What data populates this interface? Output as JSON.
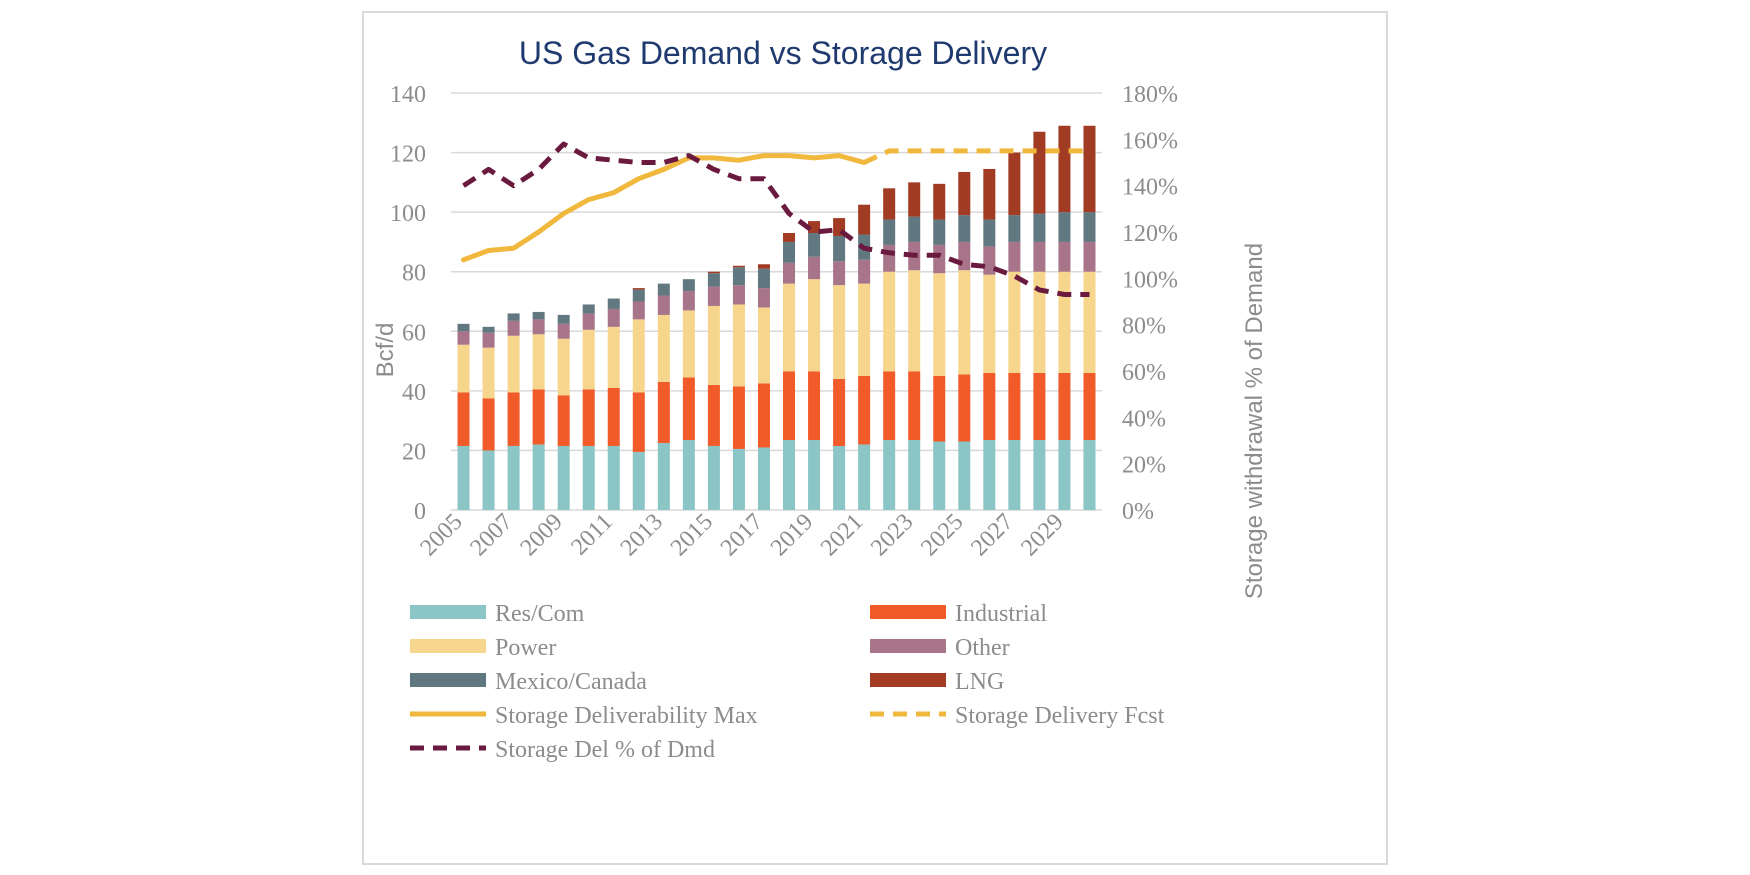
{
  "chart_data": {
    "type": "bar",
    "title": "US Gas Demand vs Storage Delivery",
    "ylabel": "Bcf/d",
    "y2label": "Storage withdrawal % of Demand",
    "ylim": [
      0,
      140
    ],
    "y2lim": [
      0,
      180
    ],
    "yticks": [
      "0",
      "20",
      "40",
      "60",
      "80",
      "100",
      "120",
      "140"
    ],
    "y2ticks": [
      "0%",
      "20%",
      "40%",
      "60%",
      "80%",
      "100%",
      "120%",
      "140%",
      "160%",
      "180%"
    ],
    "categories": [
      "2005",
      "2006",
      "2007",
      "2008",
      "2009",
      "2010",
      "2011",
      "2012",
      "2013",
      "2014",
      "2015",
      "2016",
      "2017",
      "2018",
      "2019",
      "2020",
      "2021",
      "2022",
      "2023",
      "2024",
      "2025",
      "2026",
      "2027",
      "2028",
      "2029",
      "2030"
    ],
    "x_tick_labels": [
      "2005",
      "2007",
      "2009",
      "2011",
      "2013",
      "2015",
      "2017",
      "2019",
      "2021",
      "2023",
      "2025",
      "2027",
      "2029"
    ],
    "grid": true,
    "legend_position": "bottom",
    "series": [
      {
        "name": "Res/Com",
        "kind": "bar",
        "color": "#8cc5c6",
        "values": [
          21.5,
          20,
          21.5,
          22,
          21.5,
          21.5,
          21.5,
          19.5,
          22.5,
          23.5,
          21.5,
          20.5,
          21,
          23.5,
          23.5,
          21.5,
          22,
          23.5,
          23.5,
          23,
          23,
          23.5,
          23.5,
          23.5,
          23.5,
          23.5
        ]
      },
      {
        "name": "Industrial",
        "kind": "bar",
        "color": "#f15a29",
        "values": [
          18,
          17.5,
          18,
          18.5,
          17,
          19,
          19.5,
          20,
          20.5,
          21,
          20.5,
          21,
          21.5,
          23,
          23,
          22.5,
          23,
          23,
          23,
          22,
          22.5,
          22.5,
          22.5,
          22.5,
          22.5,
          22.5
        ]
      },
      {
        "name": "Power",
        "kind": "bar",
        "color": "#f5d68c",
        "values": [
          16,
          17,
          19,
          18.5,
          19,
          20,
          20.5,
          24.5,
          22.5,
          22.5,
          26.5,
          27.5,
          25.5,
          29.5,
          31,
          31.5,
          31,
          33.5,
          34,
          34.5,
          35,
          33,
          34,
          34,
          34,
          34
        ]
      },
      {
        "name": "Other",
        "kind": "bar",
        "color": "#a87489",
        "values": [
          4.5,
          5,
          5,
          5,
          5,
          5.5,
          6,
          6,
          6.5,
          6.5,
          6.5,
          6.5,
          6.5,
          7,
          7.5,
          8,
          8,
          9,
          9.5,
          9.5,
          9.5,
          9.5,
          10,
          10,
          10,
          10
        ]
      },
      {
        "name": "Mexico/Canada",
        "kind": "bar",
        "color": "#627880",
        "values": [
          2.5,
          2,
          2.5,
          2.5,
          3,
          3,
          3.5,
          4,
          4,
          4,
          4.5,
          6,
          6.5,
          7,
          8,
          8.5,
          8.5,
          8.5,
          8.5,
          8.5,
          9,
          9,
          9,
          9.5,
          10,
          10
        ]
      },
      {
        "name": "LNG",
        "kind": "bar",
        "color": "#a23b24",
        "values": [
          0,
          0,
          0,
          0,
          0,
          0,
          0,
          0.5,
          0,
          0,
          0.5,
          0.5,
          1.5,
          3,
          4,
          6,
          10,
          10.5,
          11.5,
          12,
          14.5,
          17,
          21,
          27.5,
          29,
          29
        ]
      },
      {
        "name": "Storage Deliverability Max",
        "kind": "line",
        "axis": "right",
        "color": "#f0b83d",
        "dash": false,
        "values": [
          108,
          112,
          113,
          120,
          128,
          134,
          137,
          143,
          147,
          152,
          152,
          151,
          153,
          153,
          152,
          153,
          150,
          null,
          null,
          null,
          null,
          null,
          null,
          null,
          null,
          null
        ]
      },
      {
        "name": "Storage Delivery Fcst",
        "kind": "line",
        "axis": "right",
        "color": "#f0b83d",
        "dash": true,
        "values": [
          null,
          null,
          null,
          null,
          null,
          null,
          null,
          null,
          null,
          null,
          null,
          null,
          null,
          null,
          null,
          null,
          150,
          155,
          155,
          155,
          155,
          155,
          155,
          155,
          155,
          155
        ]
      },
      {
        "name": "Storage Del % of Dmd",
        "kind": "line",
        "axis": "right",
        "color": "#6b1a3f",
        "dash": true,
        "values": [
          140,
          147,
          140,
          147,
          158,
          152,
          151,
          150,
          150,
          153,
          147,
          143,
          143,
          128,
          120,
          121,
          113,
          111,
          110,
          110,
          106,
          105,
          101,
          95,
          93,
          93
        ]
      }
    ]
  }
}
